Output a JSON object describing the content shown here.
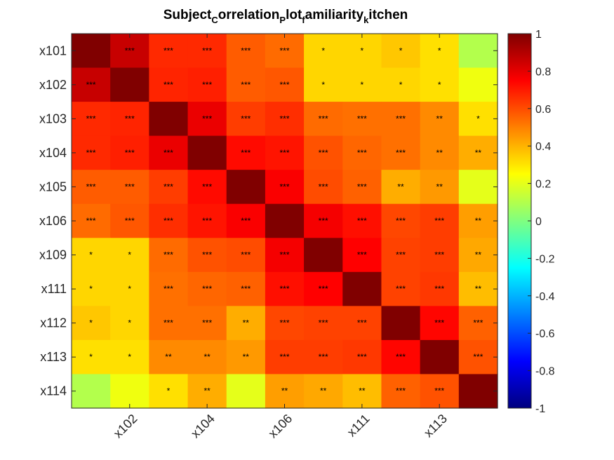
{
  "title_parts": [
    {
      "text": "Subject",
      "sub": false
    },
    {
      "text": "C",
      "sub": true
    },
    {
      "text": "orrelation",
      "sub": false
    },
    {
      "text": "P",
      "sub": true
    },
    {
      "text": "lot",
      "sub": false
    },
    {
      "text": "f",
      "sub": true
    },
    {
      "text": "amiliarity",
      "sub": false
    },
    {
      "text": "k",
      "sub": true
    },
    {
      "text": "itchen",
      "sub": false
    }
  ],
  "chart_data": {
    "type": "heatmap",
    "title": "Subject_Correlation_Plot_familiarity_kitchen",
    "row_labels": [
      "x101",
      "x102",
      "x103",
      "x104",
      "x105",
      "x106",
      "x109",
      "x111",
      "x112",
      "x113",
      "x114"
    ],
    "col_tick_labels": [
      "x102",
      "x104",
      "x106",
      "x111",
      "x113"
    ],
    "col_tick_indices": [
      1,
      3,
      5,
      7,
      9
    ],
    "colormap": "jet",
    "clim": [
      -1,
      1
    ],
    "colorbar_ticks": [
      "1",
      "0.8",
      "0.6",
      "0.4",
      "0.2",
      "0",
      "-0.2",
      "-0.4",
      "-0.6",
      "-0.8",
      "-1"
    ],
    "colorbar_tick_values": [
      1,
      0.8,
      0.6,
      0.4,
      0.2,
      0,
      -0.2,
      -0.4,
      -0.6,
      -0.8,
      -1
    ],
    "values": [
      [
        1.0,
        0.86,
        0.67,
        0.67,
        0.57,
        0.54,
        0.33,
        0.33,
        0.36,
        0.31,
        0.1
      ],
      [
        0.86,
        1.0,
        0.68,
        0.69,
        0.57,
        0.58,
        0.33,
        0.33,
        0.33,
        0.31,
        0.22
      ],
      [
        0.67,
        0.68,
        1.0,
        0.79,
        0.63,
        0.66,
        0.54,
        0.53,
        0.53,
        0.48,
        0.31
      ],
      [
        0.67,
        0.69,
        0.79,
        1.0,
        0.73,
        0.71,
        0.59,
        0.55,
        0.53,
        0.48,
        0.41
      ],
      [
        0.57,
        0.57,
        0.63,
        0.73,
        1.0,
        0.76,
        0.6,
        0.56,
        0.41,
        0.45,
        0.2
      ],
      [
        0.54,
        0.58,
        0.66,
        0.71,
        0.76,
        1.0,
        0.77,
        0.72,
        0.61,
        0.63,
        0.44
      ],
      [
        0.33,
        0.33,
        0.54,
        0.59,
        0.6,
        0.77,
        1.0,
        0.75,
        0.62,
        0.63,
        0.42
      ],
      [
        0.33,
        0.33,
        0.53,
        0.55,
        0.56,
        0.72,
        0.75,
        1.0,
        0.62,
        0.64,
        0.38
      ],
      [
        0.36,
        0.33,
        0.53,
        0.53,
        0.41,
        0.61,
        0.62,
        0.62,
        1.0,
        0.74,
        0.56
      ],
      [
        0.31,
        0.31,
        0.48,
        0.48,
        0.45,
        0.63,
        0.63,
        0.64,
        0.74,
        1.0,
        0.59
      ],
      [
        0.1,
        0.22,
        0.31,
        0.41,
        0.2,
        0.44,
        0.42,
        0.38,
        0.56,
        0.59,
        1.0
      ]
    ],
    "annotations": [
      [
        "",
        "***",
        "***",
        "***",
        "***",
        "***",
        "*",
        "*",
        "*",
        "*",
        ""
      ],
      [
        "***",
        "",
        "***",
        "***",
        "***",
        "***",
        "*",
        "*",
        "*",
        "*",
        ""
      ],
      [
        "***",
        "***",
        "",
        "***",
        "***",
        "***",
        "***",
        "***",
        "***",
        "**",
        "*"
      ],
      [
        "***",
        "***",
        "***",
        "",
        "***",
        "***",
        "***",
        "***",
        "***",
        "**",
        "**"
      ],
      [
        "***",
        "***",
        "***",
        "***",
        "",
        "***",
        "***",
        "***",
        "**",
        "**",
        ""
      ],
      [
        "***",
        "***",
        "***",
        "***",
        "***",
        "",
        "***",
        "***",
        "***",
        "***",
        "**"
      ],
      [
        "*",
        "*",
        "***",
        "***",
        "***",
        "***",
        "",
        "***",
        "***",
        "***",
        "**"
      ],
      [
        "*",
        "*",
        "***",
        "***",
        "***",
        "***",
        "***",
        "",
        "***",
        "***",
        "**"
      ],
      [
        "*",
        "*",
        "***",
        "***",
        "**",
        "***",
        "***",
        "***",
        "",
        "***",
        "***"
      ],
      [
        "*",
        "*",
        "**",
        "**",
        "**",
        "***",
        "***",
        "***",
        "***",
        "",
        "***"
      ],
      [
        "",
        "",
        "*",
        "**",
        "",
        "**",
        "**",
        "**",
        "***",
        "***",
        ""
      ]
    ]
  }
}
